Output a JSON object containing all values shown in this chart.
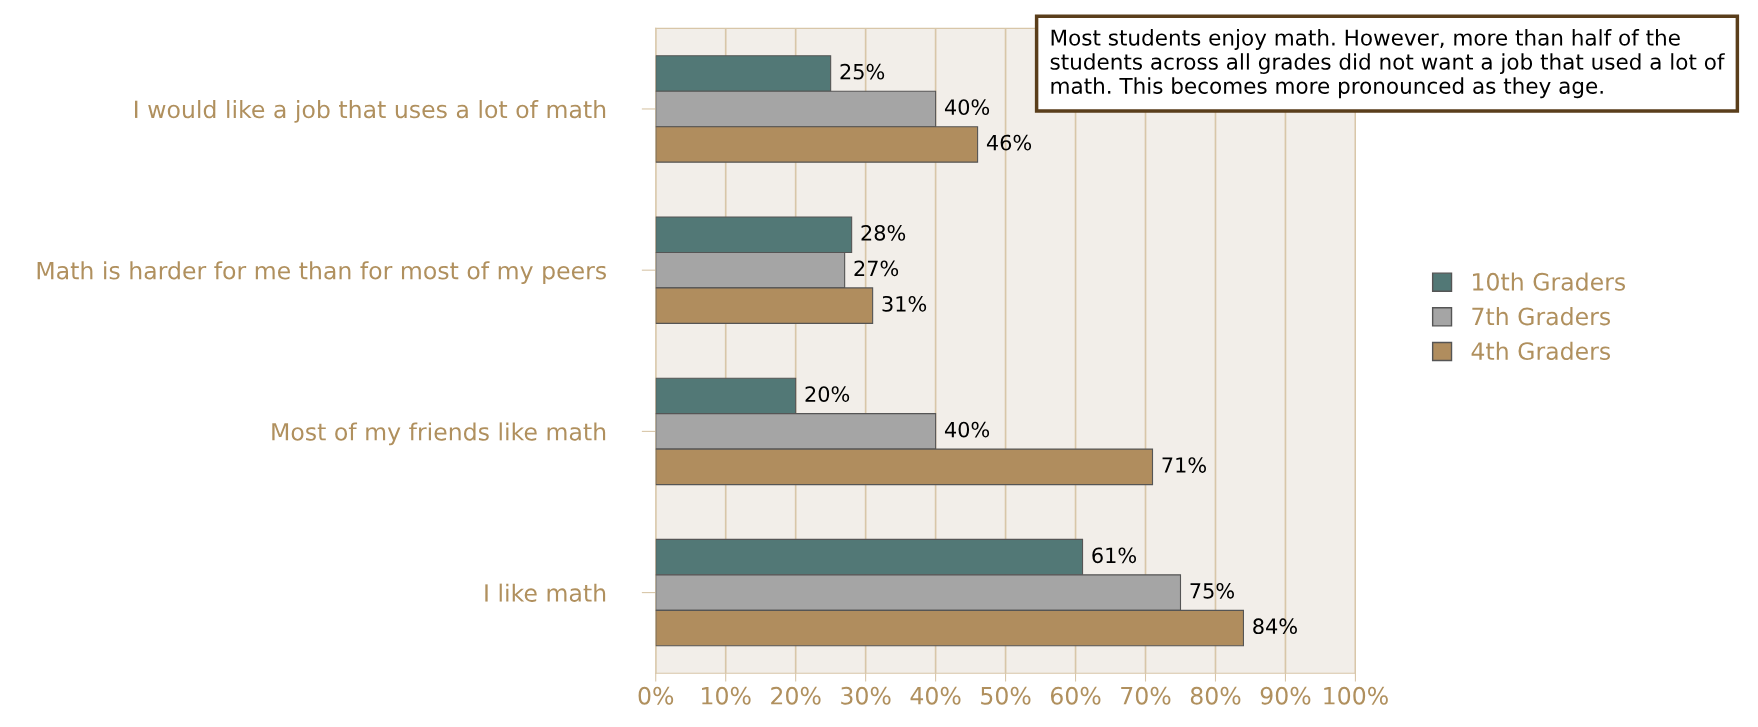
{
  "chart_data": {
    "type": "bar",
    "orientation": "horizontal",
    "categories": [
      "I would like a job that uses a lot of math",
      "Math is harder for me than for most of my peers",
      "Most of my friends like math",
      "I like math"
    ],
    "series": [
      {
        "name": "10th Graders",
        "color": "#527876",
        "values": [
          25,
          28,
          20,
          61
        ],
        "value_labels": [
          "25%",
          "28%",
          "20%",
          "61%"
        ]
      },
      {
        "name": "7th Graders",
        "color": "#a5a5a5",
        "values": [
          40,
          27,
          40,
          75
        ],
        "value_labels": [
          "40%",
          "27%",
          "40%",
          "75%"
        ]
      },
      {
        "name": "4th Graders",
        "color": "#b08d5e",
        "values": [
          46,
          31,
          71,
          84
        ],
        "value_labels": [
          "46%",
          "31%",
          "71%",
          "84%"
        ]
      }
    ],
    "xlim": [
      0,
      100
    ],
    "xticks": [
      {
        "value": 0,
        "label": "0%"
      },
      {
        "value": 10,
        "label": "10%"
      },
      {
        "value": 20,
        "label": "20%"
      },
      {
        "value": 30,
        "label": "30%"
      },
      {
        "value": 40,
        "label": "40%"
      },
      {
        "value": 50,
        "label": "50%"
      },
      {
        "value": 60,
        "label": "60%"
      },
      {
        "value": 70,
        "label": "70%"
      },
      {
        "value": 80,
        "label": "80%"
      },
      {
        "value": 90,
        "label": "90%"
      },
      {
        "value": 100,
        "label": "100%"
      }
    ],
    "grid": "x",
    "legend": "right",
    "annotations": [
      "Most students enjoy math. However, more than half of the students across all grades did not want a job that used a lot of math. This becomes more pronounced as they age."
    ]
  }
}
